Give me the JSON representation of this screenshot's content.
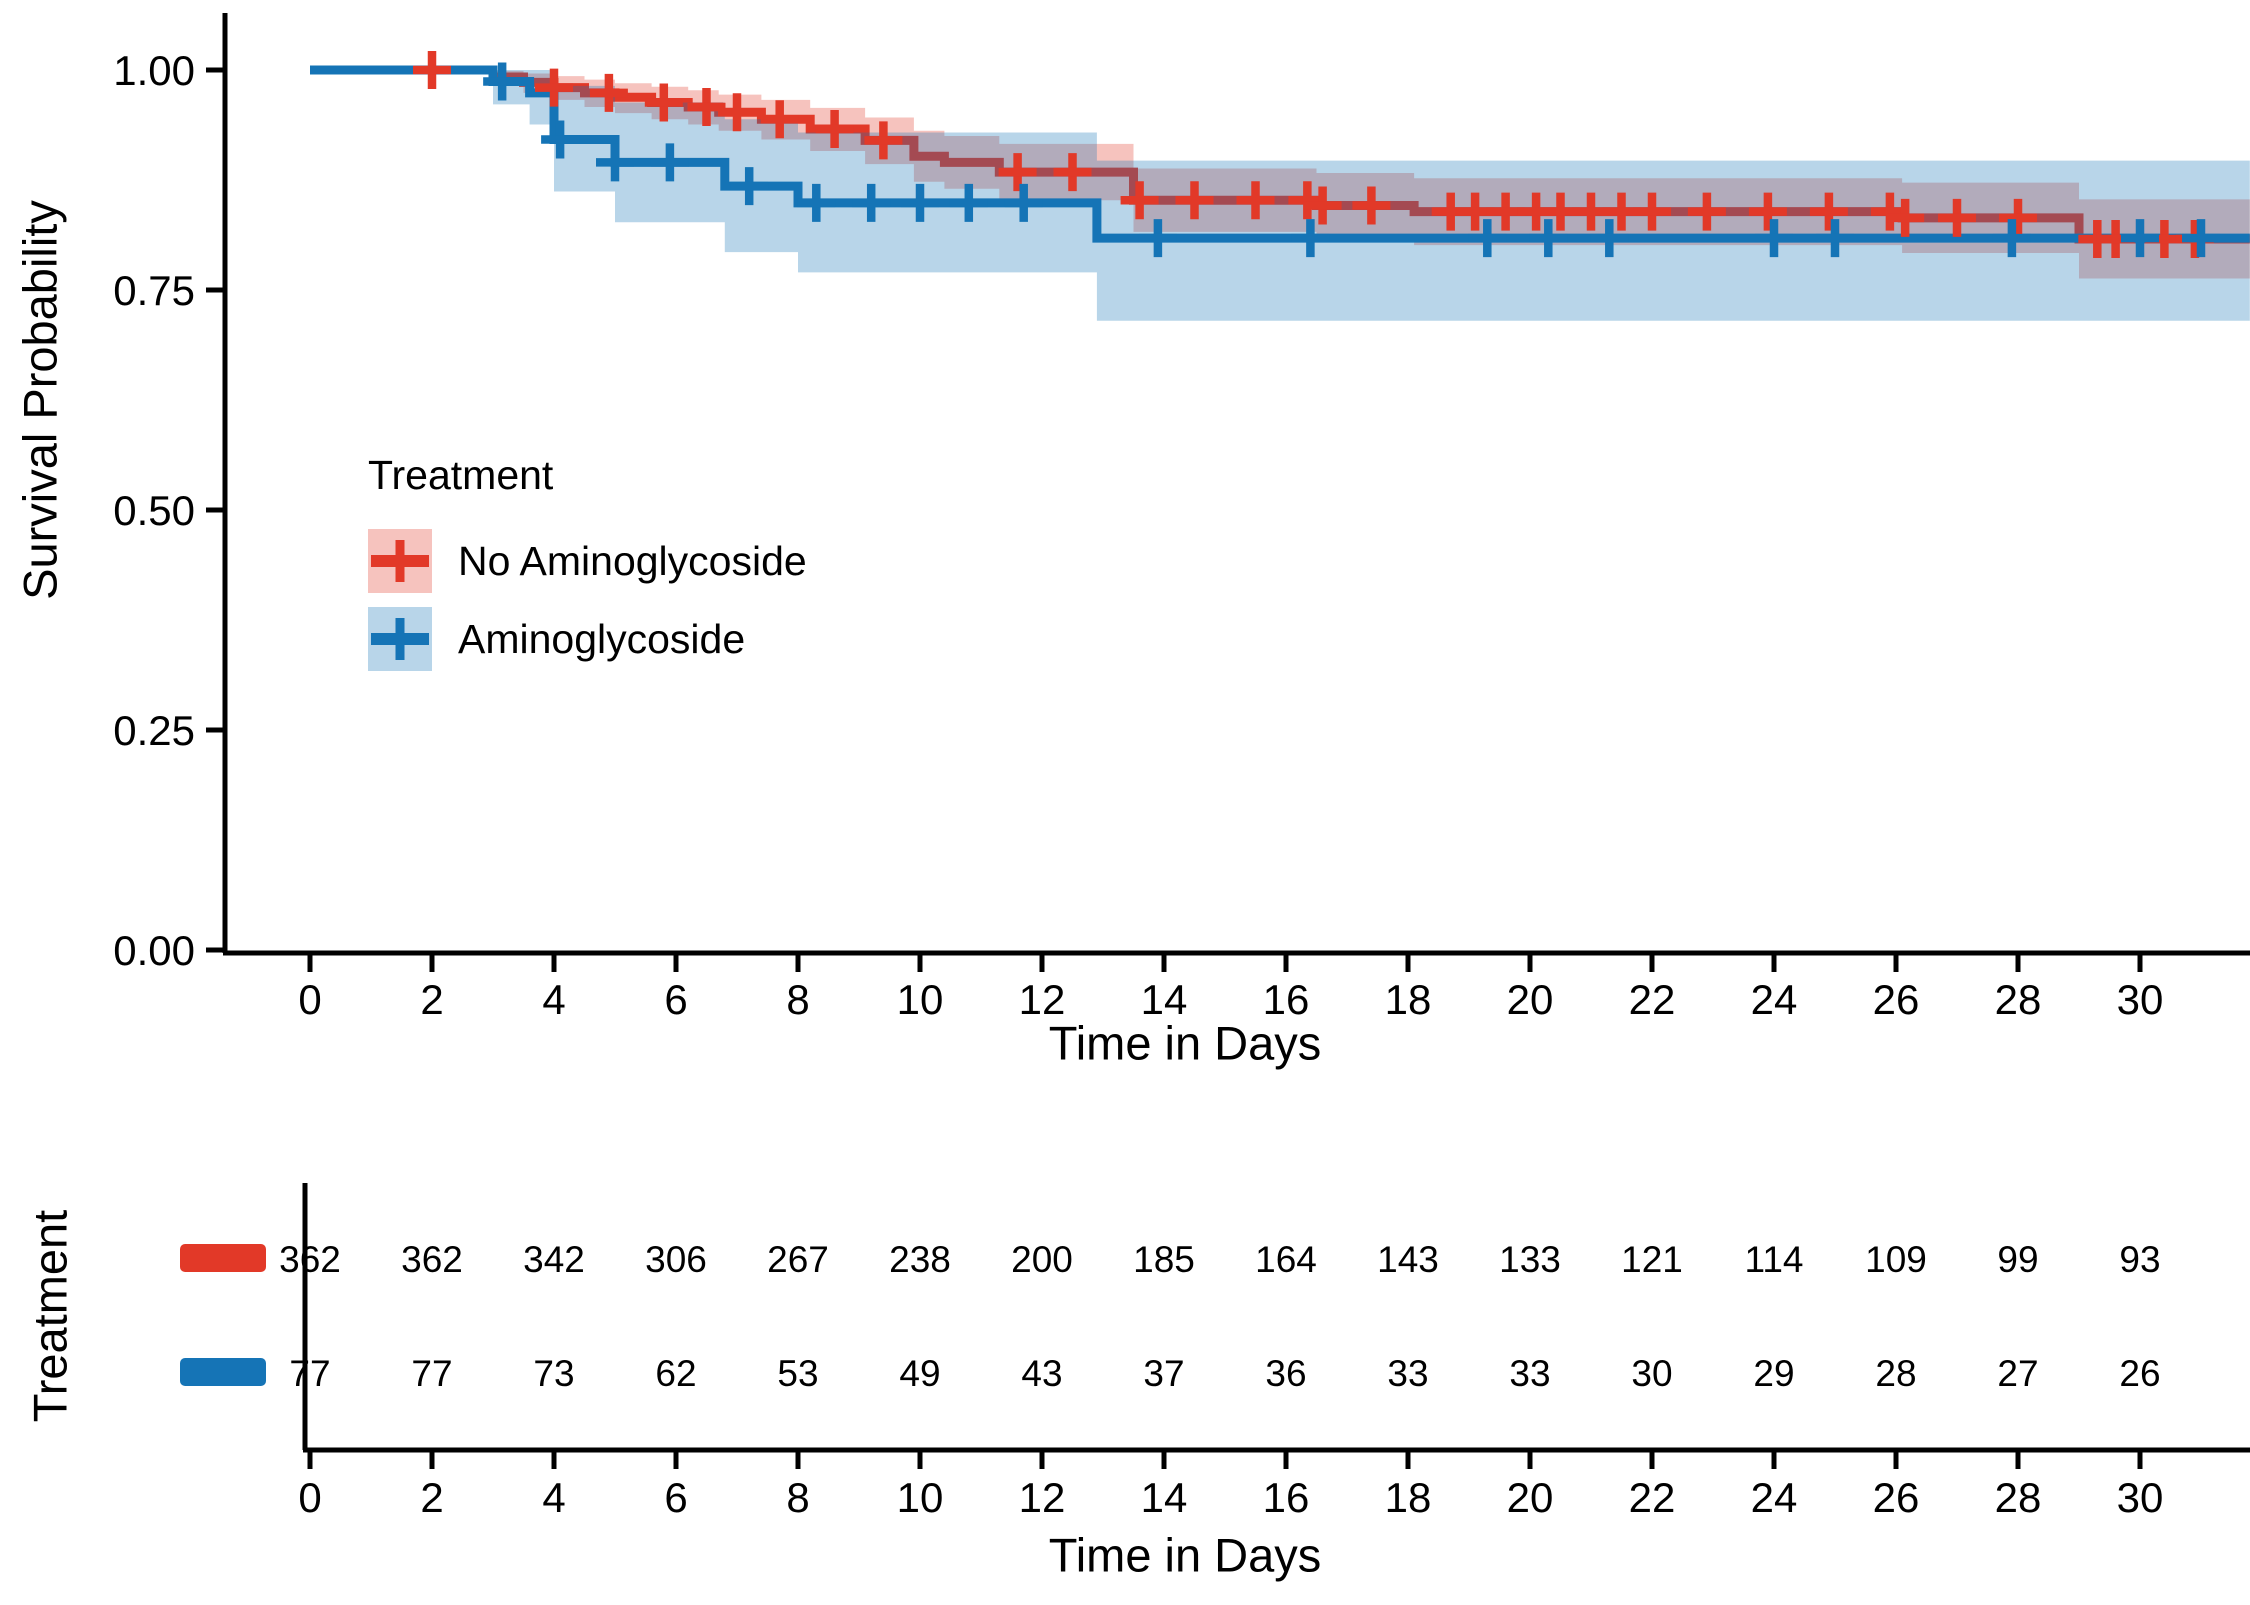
{
  "chart_data": {
    "type": "line",
    "subtype": "kaplan-meier-step",
    "title": "",
    "xlabel": "Time in Days",
    "ylabel": "Survival Probability",
    "xlim": [
      0,
      31.8
    ],
    "ylim": [
      0,
      1
    ],
    "x_ticks": [
      0,
      2,
      4,
      6,
      8,
      10,
      12,
      14,
      16,
      18,
      20,
      22,
      24,
      26,
      28,
      30
    ],
    "y_ticks": [
      {
        "value": 1.0,
        "label": "1.00"
      },
      {
        "value": 0.75,
        "label": "0.75"
      },
      {
        "value": 0.5,
        "label": "0.50"
      },
      {
        "value": 0.25,
        "label": "0.25"
      },
      {
        "value": 0.0,
        "label": "0.00"
      }
    ],
    "grid": false,
    "legend": {
      "title": "Treatment",
      "position": "inside-left"
    },
    "series": [
      {
        "name": "No Aminoglycoside",
        "color": "#e23928",
        "band_fill": "rgba(226,57,40,0.30)",
        "steps": [
          [
            0,
            1.0
          ],
          [
            3,
            0.992
          ],
          [
            3.5,
            0.986
          ],
          [
            4,
            0.98
          ],
          [
            4.5,
            0.974
          ],
          [
            5,
            0.969
          ],
          [
            5.6,
            0.963
          ],
          [
            6.2,
            0.958
          ],
          [
            6.7,
            0.952
          ],
          [
            7.4,
            0.944
          ],
          [
            8.2,
            0.933
          ],
          [
            9.1,
            0.92
          ],
          [
            9.9,
            0.902
          ],
          [
            10.4,
            0.895
          ],
          [
            11.3,
            0.884
          ],
          [
            13.5,
            0.852
          ],
          [
            16.5,
            0.846
          ],
          [
            18.1,
            0.839
          ],
          [
            26.1,
            0.832
          ],
          [
            29,
            0.808
          ]
        ],
        "band": [
          [
            3,
            0.983,
            0.999
          ],
          [
            3.5,
            0.974,
            0.996
          ],
          [
            4,
            0.966,
            0.993
          ],
          [
            4.5,
            0.958,
            0.989
          ],
          [
            5,
            0.951,
            0.985
          ],
          [
            5.6,
            0.944,
            0.981
          ],
          [
            6.2,
            0.938,
            0.977
          ],
          [
            6.7,
            0.931,
            0.972
          ],
          [
            7.4,
            0.921,
            0.966
          ],
          [
            8.2,
            0.908,
            0.957
          ],
          [
            9.1,
            0.893,
            0.946
          ],
          [
            9.9,
            0.873,
            0.931
          ],
          [
            10.4,
            0.865,
            0.925
          ],
          [
            11.3,
            0.852,
            0.916
          ],
          [
            13.5,
            0.816,
            0.888
          ],
          [
            16.5,
            0.809,
            0.883
          ],
          [
            18.1,
            0.801,
            0.877
          ],
          [
            26.1,
            0.792,
            0.872
          ],
          [
            29,
            0.763,
            0.853
          ]
        ],
        "censor_times": [
          2,
          4.0,
          4.9,
          5.8,
          6.5,
          7.0,
          7.7,
          8.6,
          9.4,
          11.6,
          12.5,
          13.6,
          14.5,
          15.5,
          16.35,
          16.6,
          17.4,
          18.7,
          19.1,
          19.6,
          20.1,
          20.5,
          21.0,
          21.5,
          22.0,
          22.9,
          23.9,
          24.9,
          25.9,
          26.15,
          27.0,
          28.0,
          29.3,
          29.6,
          30.4,
          30.9
        ]
      },
      {
        "name": "Aminoglycoside",
        "color": "#1574b6",
        "band_fill": "rgba(21,116,182,0.30)",
        "steps": [
          [
            0,
            1.0
          ],
          [
            3,
            0.987
          ],
          [
            3.6,
            0.974
          ],
          [
            4,
            0.921
          ],
          [
            5,
            0.895
          ],
          [
            6.8,
            0.868
          ],
          [
            8,
            0.849
          ],
          [
            12.9,
            0.809
          ]
        ],
        "band": [
          [
            3,
            0.961,
            1.0
          ],
          [
            3.6,
            0.938,
            1.0
          ],
          [
            4,
            0.862,
            0.982
          ],
          [
            5,
            0.827,
            0.963
          ],
          [
            6.8,
            0.793,
            0.944
          ],
          [
            8,
            0.77,
            0.929
          ],
          [
            12.9,
            0.715,
            0.897
          ]
        ],
        "censor_times": [
          3.15,
          4.1,
          5.0,
          5.9,
          7.2,
          8.3,
          9.2,
          10.0,
          10.8,
          11.7,
          13.9,
          16.4,
          19.3,
          20.3,
          21.3,
          24.0,
          25.0,
          27.9,
          30.0,
          31.0
        ]
      }
    ],
    "risk_table": {
      "title": "Treatment",
      "xlabel": "Time in Days",
      "times": [
        0,
        2,
        4,
        6,
        8,
        10,
        12,
        14,
        16,
        18,
        20,
        22,
        24,
        26,
        28,
        30
      ],
      "rows": [
        {
          "name": "No Aminoglycoside",
          "color": "#e23928",
          "counts": [
            362,
            362,
            342,
            306,
            267,
            238,
            200,
            185,
            164,
            143,
            133,
            121,
            114,
            109,
            99,
            93
          ]
        },
        {
          "name": "Aminoglycoside",
          "color": "#1574b6",
          "counts": [
            77,
            77,
            73,
            62,
            53,
            49,
            43,
            37,
            36,
            33,
            33,
            30,
            29,
            28,
            27,
            26
          ]
        }
      ]
    }
  }
}
